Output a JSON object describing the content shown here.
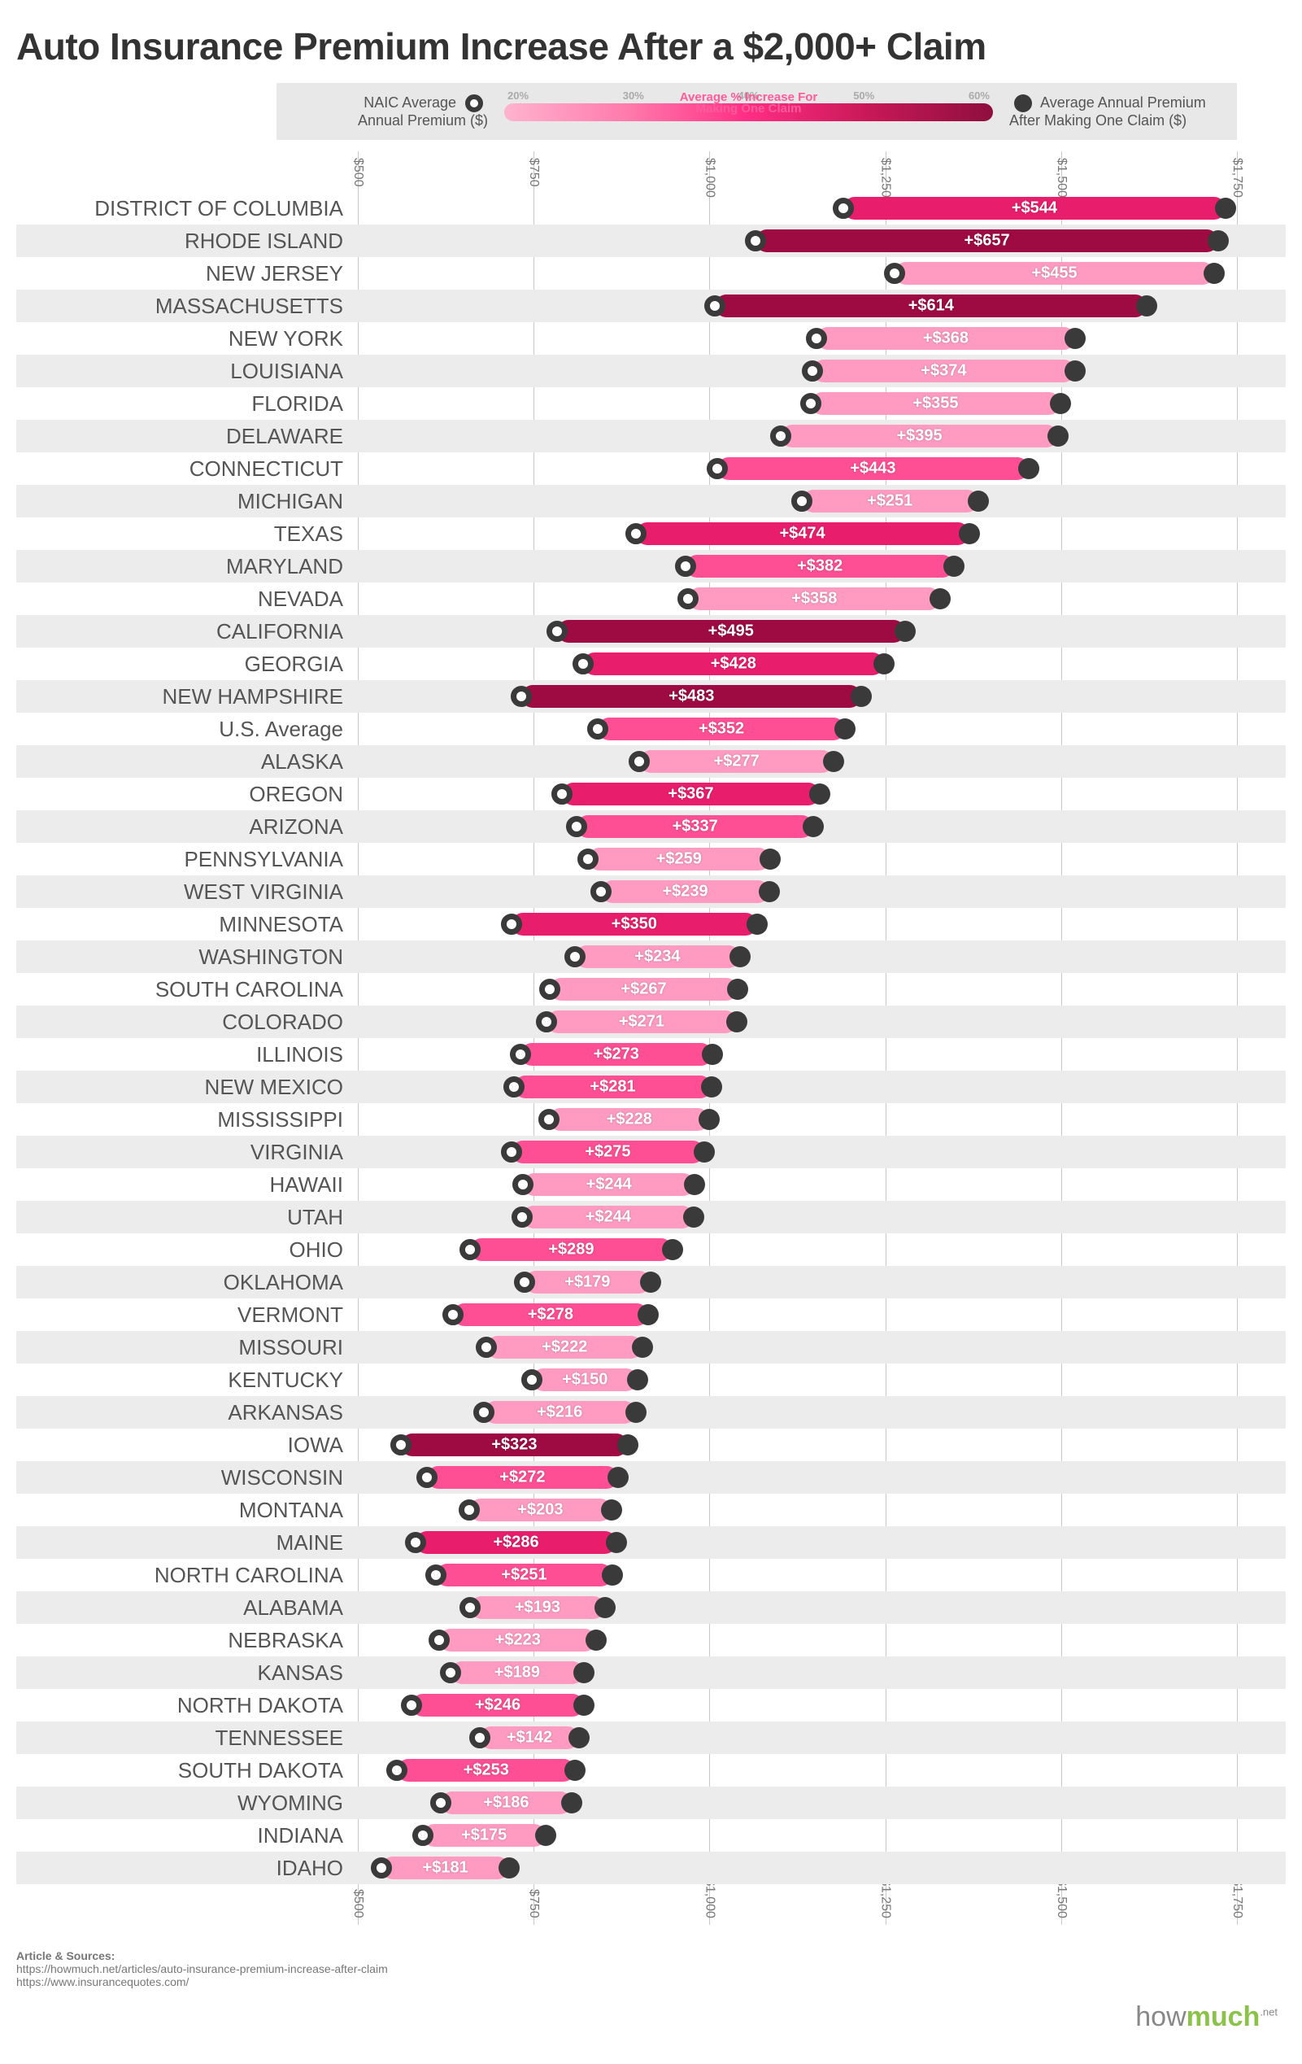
{
  "title": "Auto Insurance Premium Increase After a $2,000+ Claim",
  "legend": {
    "left_label_1": "NAIC Average",
    "left_label_2": "Annual Premium ($)",
    "right_label_1": "Average Annual Premium",
    "right_label_2": "After Making One Claim ($)",
    "mid_label_1": "Average % Increase For",
    "mid_label_2": "Making One Claim",
    "pct_ticks": [
      "20%",
      "30%",
      "40%",
      "50%",
      "60%"
    ],
    "gradient_stops": [
      "#ffb3ce",
      "#ff7bac",
      "#ff2d84",
      "#c71856",
      "#8e0f3d"
    ]
  },
  "axis": {
    "min": 500,
    "max": 1750,
    "ticks": [
      500,
      750,
      1000,
      1250,
      1500,
      1750
    ],
    "tick_labels": [
      "$500",
      "$750",
      "$1,000",
      "$1,250",
      "$1,500",
      "$1,750"
    ]
  },
  "palette": {
    "light": "#ff9bc1",
    "mid": "#ff4f94",
    "deep": "#e81e6d",
    "dark": "#9e0b42"
  },
  "rows": [
    {
      "state": "DISTRICT OF COLUMBIA",
      "start": 1190,
      "end": 1734,
      "inc": "+$544",
      "shade": "deep"
    },
    {
      "state": "RHODE ISLAND",
      "start": 1066,
      "end": 1723,
      "inc": "+$657",
      "shade": "dark"
    },
    {
      "state": "NEW JERSEY",
      "start": 1263,
      "end": 1718,
      "inc": "+$455",
      "shade": "light"
    },
    {
      "state": "MASSACHUSETTS",
      "start": 1008,
      "end": 1622,
      "inc": "+$614",
      "shade": "dark"
    },
    {
      "state": "NEW YORK",
      "start": 1152,
      "end": 1520,
      "inc": "+$368",
      "shade": "light"
    },
    {
      "state": "LOUISIANA",
      "start": 1146,
      "end": 1520,
      "inc": "+$374",
      "shade": "light"
    },
    {
      "state": "FLORIDA",
      "start": 1144,
      "end": 1499,
      "inc": "+$355",
      "shade": "light"
    },
    {
      "state": "DELAWARE",
      "start": 1101,
      "end": 1496,
      "inc": "+$395",
      "shade": "light"
    },
    {
      "state": "CONNECTICUT",
      "start": 1011,
      "end": 1454,
      "inc": "+$443",
      "shade": "mid"
    },
    {
      "state": "MICHIGAN",
      "start": 1131,
      "end": 1382,
      "inc": "+$251",
      "shade": "light"
    },
    {
      "state": "TEXAS",
      "start": 895,
      "end": 1369,
      "inc": "+$474",
      "shade": "deep"
    },
    {
      "state": "MARYLAND",
      "start": 966,
      "end": 1348,
      "inc": "+$382",
      "shade": "mid"
    },
    {
      "state": "NEVADA",
      "start": 970,
      "end": 1328,
      "inc": "+$358",
      "shade": "light"
    },
    {
      "state": "CALIFORNIA",
      "start": 783,
      "end": 1278,
      "inc": "+$495",
      "shade": "dark"
    },
    {
      "state": "GEORGIA",
      "start": 820,
      "end": 1248,
      "inc": "+$428",
      "shade": "deep"
    },
    {
      "state": "NEW HAMPSHIRE",
      "start": 733,
      "end": 1216,
      "inc": "+$483",
      "shade": "dark"
    },
    {
      "state": "U.S. Average",
      "start": 841,
      "end": 1193,
      "inc": "+$352",
      "shade": "mid"
    },
    {
      "state": "ALASKA",
      "start": 900,
      "end": 1177,
      "inc": "+$277",
      "shade": "light"
    },
    {
      "state": "OREGON",
      "start": 790,
      "end": 1157,
      "inc": "+$367",
      "shade": "deep"
    },
    {
      "state": "ARIZONA",
      "start": 811,
      "end": 1148,
      "inc": "+$337",
      "shade": "mid"
    },
    {
      "state": "PENNSYLVANIA",
      "start": 827,
      "end": 1086,
      "inc": "+$259",
      "shade": "light"
    },
    {
      "state": "WEST VIRGINIA",
      "start": 846,
      "end": 1085,
      "inc": "+$239",
      "shade": "light"
    },
    {
      "state": "MINNESOTA",
      "start": 718,
      "end": 1068,
      "inc": "+$350",
      "shade": "deep"
    },
    {
      "state": "WASHINGTON",
      "start": 809,
      "end": 1043,
      "inc": "+$234",
      "shade": "light"
    },
    {
      "state": "SOUTH CAROLINA",
      "start": 773,
      "end": 1040,
      "inc": "+$267",
      "shade": "light"
    },
    {
      "state": "COLORADO",
      "start": 768,
      "end": 1039,
      "inc": "+$271",
      "shade": "light"
    },
    {
      "state": "ILLINOIS",
      "start": 731,
      "end": 1004,
      "inc": "+$273",
      "shade": "mid"
    },
    {
      "state": "NEW MEXICO",
      "start": 722,
      "end": 1003,
      "inc": "+$281",
      "shade": "mid"
    },
    {
      "state": "MISSISSIPPI",
      "start": 772,
      "end": 1000,
      "inc": "+$228",
      "shade": "light"
    },
    {
      "state": "VIRGINIA",
      "start": 718,
      "end": 993,
      "inc": "+$275",
      "shade": "mid"
    },
    {
      "state": "HAWAII",
      "start": 735,
      "end": 979,
      "inc": "+$244",
      "shade": "light"
    },
    {
      "state": "UTAH",
      "start": 734,
      "end": 978,
      "inc": "+$244",
      "shade": "light"
    },
    {
      "state": "OHIO",
      "start": 659,
      "end": 948,
      "inc": "+$289",
      "shade": "mid"
    },
    {
      "state": "OKLAHOMA",
      "start": 737,
      "end": 916,
      "inc": "+$179",
      "shade": "light"
    },
    {
      "state": "VERMONT",
      "start": 635,
      "end": 913,
      "inc": "+$278",
      "shade": "mid"
    },
    {
      "state": "MISSOURI",
      "start": 683,
      "end": 905,
      "inc": "+$222",
      "shade": "light"
    },
    {
      "state": "KENTUCKY",
      "start": 748,
      "end": 898,
      "inc": "+$150",
      "shade": "light"
    },
    {
      "state": "ARKANSAS",
      "start": 679,
      "end": 895,
      "inc": "+$216",
      "shade": "light"
    },
    {
      "state": "IOWA",
      "start": 561,
      "end": 884,
      "inc": "+$323",
      "shade": "dark"
    },
    {
      "state": "WISCONSIN",
      "start": 598,
      "end": 870,
      "inc": "+$272",
      "shade": "mid"
    },
    {
      "state": "MONTANA",
      "start": 658,
      "end": 861,
      "inc": "+$203",
      "shade": "light"
    },
    {
      "state": "MAINE",
      "start": 582,
      "end": 868,
      "inc": "+$286",
      "shade": "deep"
    },
    {
      "state": "NORTH CAROLINA",
      "start": 611,
      "end": 862,
      "inc": "+$251",
      "shade": "mid"
    },
    {
      "state": "ALABAMA",
      "start": 659,
      "end": 852,
      "inc": "+$193",
      "shade": "light"
    },
    {
      "state": "NEBRASKA",
      "start": 616,
      "end": 839,
      "inc": "+$223",
      "shade": "light"
    },
    {
      "state": "KANSAS",
      "start": 632,
      "end": 821,
      "inc": "+$189",
      "shade": "light"
    },
    {
      "state": "NORTH DAKOTA",
      "start": 576,
      "end": 822,
      "inc": "+$246",
      "shade": "mid"
    },
    {
      "state": "TENNESSEE",
      "start": 673,
      "end": 815,
      "inc": "+$142",
      "shade": "light"
    },
    {
      "state": "SOUTH DAKOTA",
      "start": 556,
      "end": 809,
      "inc": "+$253",
      "shade": "mid"
    },
    {
      "state": "WYOMING",
      "start": 618,
      "end": 804,
      "inc": "+$186",
      "shade": "light"
    },
    {
      "state": "INDIANA",
      "start": 592,
      "end": 767,
      "inc": "+$175",
      "shade": "light"
    },
    {
      "state": "IDAHO",
      "start": 534,
      "end": 715,
      "inc": "+$181",
      "shade": "light"
    }
  ],
  "footer": {
    "heading": "Article & Sources:",
    "src1": "https://howmuch.net/articles/auto-insurance-premium-increase-after-claim",
    "src2": "https://www.insurancequotes.com/"
  },
  "brand": {
    "how": "how",
    "much": "much",
    "net": ".net"
  }
}
